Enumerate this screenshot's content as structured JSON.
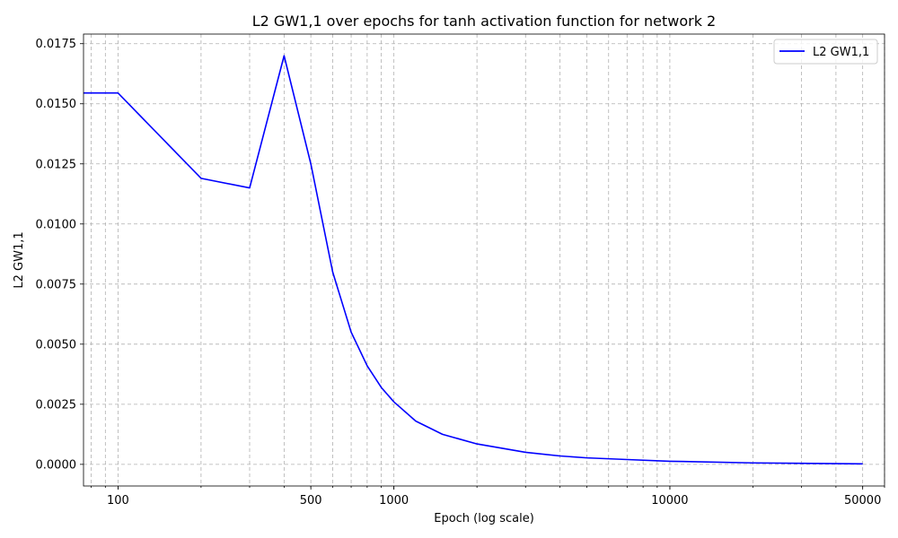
{
  "chart_data": {
    "type": "line",
    "title": "L2 GW1,1 over epochs for tanh activation function for network 2",
    "xlabel": "Epoch (log scale)",
    "ylabel": "L2 GW1,1",
    "xscale": "log",
    "xlim": [
      75,
      60000
    ],
    "ylim": [
      -0.0009,
      0.0179
    ],
    "xticks": [
      100,
      500,
      1000,
      10000,
      50000
    ],
    "xtick_labels": [
      "100",
      "500",
      "1000",
      "10000",
      "50000"
    ],
    "yticks": [
      0.0,
      0.0025,
      0.005,
      0.0075,
      0.01,
      0.0125,
      0.015,
      0.0175
    ],
    "ytick_labels": [
      "0.0000",
      "0.0025",
      "0.0050",
      "0.0075",
      "0.0100",
      "0.0125",
      "0.0150",
      "0.0175"
    ],
    "grid": true,
    "legend_position": "top-right",
    "series": [
      {
        "name": "L2 GW1,1",
        "color": "#0000ff",
        "x": [
          1,
          100,
          200,
          300,
          400,
          500,
          600,
          700,
          800,
          900,
          1000,
          1200,
          1500,
          2000,
          3000,
          4000,
          5000,
          7000,
          10000,
          20000,
          50000
        ],
        "y": [
          0.01545,
          0.01545,
          0.0119,
          0.0115,
          0.017,
          0.0125,
          0.008,
          0.0055,
          0.0041,
          0.0032,
          0.0026,
          0.0018,
          0.00125,
          0.00085,
          0.0005,
          0.00035,
          0.00027,
          0.0002,
          0.00013,
          6e-05,
          2e-05
        ]
      }
    ]
  }
}
